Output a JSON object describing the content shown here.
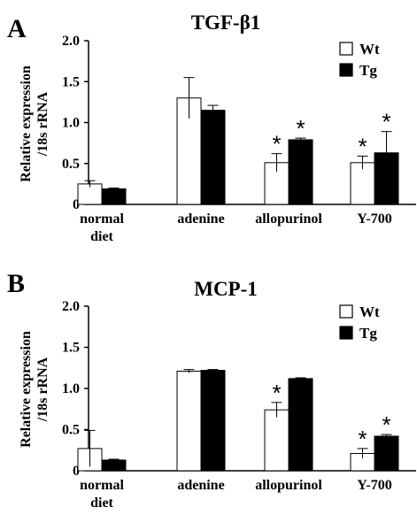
{
  "chart_data": [
    {
      "panel": "A",
      "type": "bar",
      "title": "TGF-β1",
      "ylabel_line1": "Relative expression",
      "ylabel_line2": "/18s rRNA",
      "ylim": [
        0,
        2.0
      ],
      "yticks": [
        "0",
        "0.5",
        "1.0",
        "1.5",
        "2.0"
      ],
      "categories": [
        [
          "normal",
          "diet"
        ],
        [
          "adenine"
        ],
        [
          "allopurinol"
        ],
        [
          "Y-700"
        ]
      ],
      "series": [
        {
          "name": "Wt",
          "values": [
            0.25,
            1.3,
            0.51,
            0.51
          ],
          "errors": [
            0.04,
            0.25,
            0.11,
            0.08
          ],
          "significant": [
            false,
            false,
            true,
            true
          ]
        },
        {
          "name": "Tg",
          "values": [
            0.19,
            1.15,
            0.79,
            0.63
          ],
          "errors": [
            0.01,
            0.06,
            0.02,
            0.26
          ],
          "significant": [
            false,
            false,
            true,
            true
          ]
        }
      ]
    },
    {
      "panel": "B",
      "type": "bar",
      "title": "MCP-1",
      "ylabel_line1": "Relative expression",
      "ylabel_line2": "/18s rRNA",
      "ylim": [
        0,
        2.0
      ],
      "yticks": [
        "0",
        "0.5",
        "1.0",
        "1.5",
        "2.0"
      ],
      "categories": [
        [
          "normal",
          "diet"
        ],
        [
          "adenine"
        ],
        [
          "allopurinol"
        ],
        [
          "Y-700"
        ]
      ],
      "series": [
        {
          "name": "Wt",
          "values": [
            0.27,
            1.21,
            0.74,
            0.21
          ],
          "errors": [
            0.22,
            0.02,
            0.09,
            0.06
          ],
          "significant": [
            false,
            false,
            true,
            true
          ]
        },
        {
          "name": "Tg",
          "values": [
            0.13,
            1.22,
            1.12,
            0.42
          ],
          "errors": [
            0.01,
            0.01,
            0.01,
            0.02
          ],
          "significant": [
            false,
            false,
            false,
            true
          ]
        }
      ]
    }
  ],
  "legend_labels": {
    "wt": "Wt",
    "tg": "Tg"
  },
  "significance_marker": "*",
  "colors": {
    "wt_fill": "#ffffff",
    "tg_fill": "#000000",
    "stroke": "#000000"
  }
}
